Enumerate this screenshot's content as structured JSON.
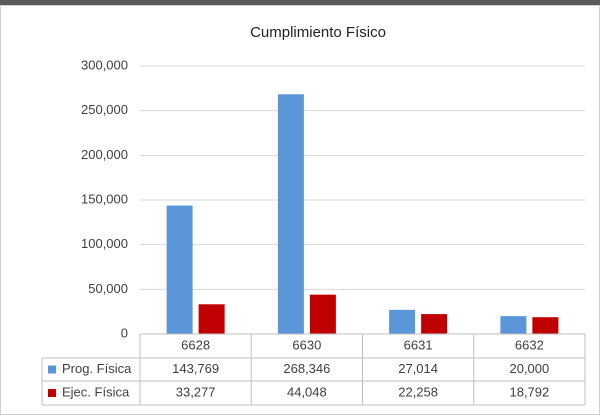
{
  "chart_data": {
    "type": "bar",
    "title": "Cumplimiento Físico",
    "categories": [
      "6628",
      "6630",
      "6631",
      "6632"
    ],
    "series": [
      {
        "name": "Prog. Física",
        "color": "#5b96d8",
        "values": [
          143769,
          268346,
          27014,
          20000
        ],
        "value_labels": [
          "143,769",
          "268,346",
          "27,014",
          "20,000"
        ]
      },
      {
        "name": "Ejec. Física",
        "color": "#c00000",
        "values": [
          33277,
          44048,
          22258,
          18792
        ],
        "value_labels": [
          "33,277",
          "44,048",
          "22,258",
          "18,792"
        ]
      }
    ],
    "ylim": [
      0,
      300000
    ],
    "yticks": [
      0,
      {
        "value": 50000,
        "label": "50,000"
      },
      {
        "value": 100000,
        "label": "100,000"
      },
      {
        "value": 150000,
        "label": "150,000"
      },
      {
        "value": 200000,
        "label": "200,000"
      },
      {
        "value": 250000,
        "label": "250,000"
      },
      {
        "value": 300000,
        "label": "300,000"
      }
    ],
    "grid": true
  }
}
